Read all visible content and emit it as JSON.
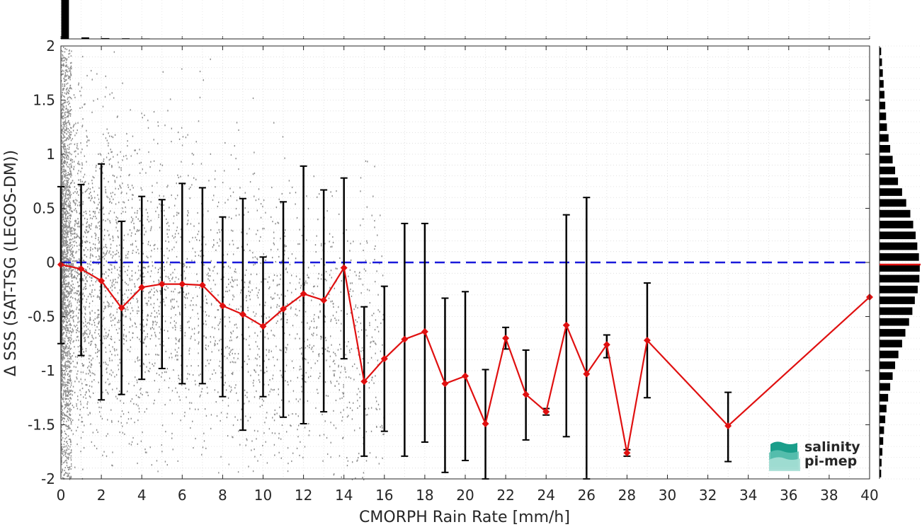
{
  "chart_data": {
    "type": "line",
    "title": "",
    "xlabel": "CMORPH Rain Rate [mm/h]",
    "ylabel": "Δ SSS (SAT-TSG (LEGOS-DM))",
    "xlim": [
      0,
      40
    ],
    "ylim": [
      -2,
      2
    ],
    "xticks": [
      "0",
      "2",
      "4",
      "6",
      "8",
      "10",
      "12",
      "14",
      "16",
      "18",
      "20",
      "22",
      "24",
      "26",
      "28",
      "30",
      "32",
      "34",
      "36",
      "38",
      "40"
    ],
    "yticks": [
      "2",
      "1.5",
      "1",
      "0.5",
      "0",
      "-0.5",
      "-1",
      "-1.5",
      "-2"
    ],
    "grid": true,
    "reference_line": {
      "y": 0,
      "color": "#1a1adb",
      "style": "dashed"
    },
    "series": [
      {
        "color": "#e01010",
        "marker": "diamond",
        "x": [
          0,
          1,
          2,
          3,
          4,
          5,
          6,
          7,
          8,
          9,
          10,
          11,
          12,
          13,
          14,
          15,
          16,
          17,
          18,
          19,
          20,
          21,
          22,
          23,
          24,
          25,
          26,
          27,
          28,
          29,
          33,
          40
        ],
        "y": [
          -0.02,
          -0.06,
          -0.17,
          -0.42,
          -0.23,
          -0.2,
          -0.2,
          -0.21,
          -0.4,
          -0.48,
          -0.59,
          -0.43,
          -0.29,
          -0.35,
          -0.05,
          -1.1,
          -0.89,
          -0.71,
          -0.64,
          -1.12,
          -1.05,
          -1.49,
          -0.7,
          -1.22,
          -1.38,
          -0.58,
          -1.03,
          -0.76,
          -1.76,
          -0.72,
          -1.51,
          -0.32
        ],
        "lower": [
          -0.75,
          -0.86,
          -1.27,
          -1.22,
          -1.08,
          -0.98,
          -1.12,
          -1.12,
          -1.24,
          -1.55,
          -1.24,
          -1.43,
          -1.49,
          -1.38,
          -0.89,
          -1.79,
          -1.56,
          -1.79,
          -1.66,
          -1.94,
          -1.83,
          -2.0,
          -0.8,
          -1.64,
          -1.41,
          -1.61,
          -2.0,
          -0.88,
          -1.79,
          -1.25,
          -1.84,
          null
        ],
        "upper": [
          0.7,
          0.72,
          0.91,
          0.38,
          0.61,
          0.58,
          0.73,
          0.69,
          0.42,
          0.59,
          0.05,
          0.56,
          0.89,
          0.67,
          0.78,
          -0.41,
          -0.22,
          0.36,
          0.36,
          -0.33,
          -0.27,
          -0.99,
          -0.6,
          -0.81,
          -1.35,
          0.44,
          0.6,
          -0.67,
          -1.73,
          -0.19,
          -1.2,
          null
        ]
      }
    ],
    "scatter_color": "#8c8c8c",
    "mean_line_color": "#e01010",
    "hist_top": {
      "x": [
        0,
        1,
        2,
        3,
        4
      ],
      "counts": [
        1.0,
        0.04,
        0.02,
        0.015,
        0.01
      ]
    },
    "hist_right": {
      "y": [
        1.95,
        1.85,
        1.75,
        1.65,
        1.55,
        1.45,
        1.35,
        1.25,
        1.15,
        1.05,
        0.95,
        0.85,
        0.75,
        0.65,
        0.55,
        0.45,
        0.35,
        0.25,
        0.15,
        0.05,
        -0.05,
        -0.15,
        -0.25,
        -0.35,
        -0.45,
        -0.55,
        -0.65,
        -0.75,
        -0.85,
        -0.95,
        -1.05,
        -1.15,
        -1.25,
        -1.35,
        -1.45,
        -1.55,
        -1.65,
        -1.75,
        -1.85,
        -1.95
      ],
      "counts": [
        0.04,
        0.06,
        0.08,
        0.1,
        0.12,
        0.14,
        0.16,
        0.18,
        0.22,
        0.26,
        0.32,
        0.38,
        0.45,
        0.55,
        0.65,
        0.75,
        0.82,
        0.88,
        0.92,
        0.96,
        0.98,
        0.97,
        0.93,
        0.86,
        0.8,
        0.72,
        0.63,
        0.55,
        0.46,
        0.38,
        0.32,
        0.26,
        0.21,
        0.17,
        0.14,
        0.11,
        0.09,
        0.07,
        0.05,
        0.04
      ]
    }
  },
  "logo": {
    "line1": "salinity",
    "line2": "pi-mep",
    "color": "#1a9e8a"
  }
}
